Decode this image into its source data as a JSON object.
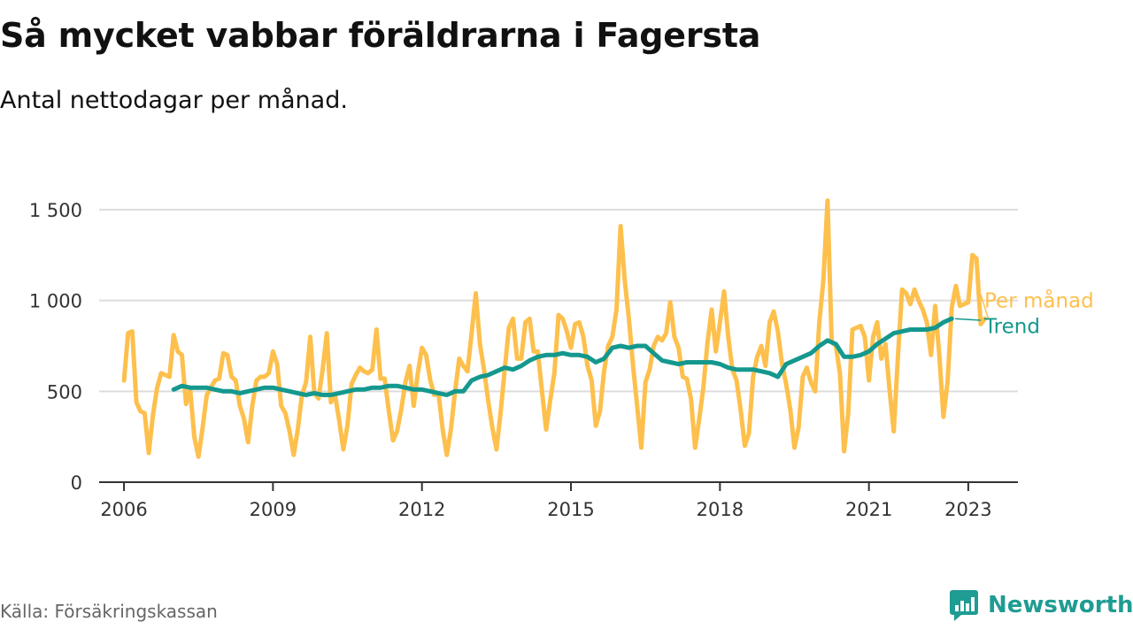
{
  "title": "Så mycket vabbar föräldrarna i Fagersta",
  "subtitle": "Antal nettodagar per månad.",
  "source": "Källa: Försäkringskassan",
  "brand": {
    "name": "Newsworthy",
    "icon": "newsworthy-logo-icon"
  },
  "colors": {
    "monthly": "#fdc04d",
    "trend": "#14988e",
    "grid": "#dddddd",
    "axis": "#333333"
  },
  "chart_data": {
    "type": "line",
    "title": "Så mycket vabbar föräldrarna i Fagersta",
    "xlabel": "",
    "ylabel": "",
    "xlim": [
      "2005-07",
      "2024-01"
    ],
    "ylim": [
      0,
      1500
    ],
    "x_ticks": [
      {
        "date": "2006-01",
        "label": "2006"
      },
      {
        "date": "2009-01",
        "label": "2009"
      },
      {
        "date": "2012-01",
        "label": "2012"
      },
      {
        "date": "2015-01",
        "label": "2015"
      },
      {
        "date": "2018-01",
        "label": "2018"
      },
      {
        "date": "2021-01",
        "label": "2021"
      },
      {
        "date": "2023-01",
        "label": "2023"
      }
    ],
    "y_ticks": [
      {
        "value": 0,
        "label": "0"
      },
      {
        "value": 500,
        "label": "500"
      },
      {
        "value": 1000,
        "label": "1 000"
      },
      {
        "value": 1500,
        "label": "1 500"
      }
    ],
    "grid": true,
    "legend": "inline labels at line ends (right)",
    "series": [
      {
        "name": "Per månad",
        "color": "#fdc04d",
        "start": "2006-01",
        "values": [
          560,
          820,
          830,
          440,
          390,
          380,
          160,
          370,
          520,
          600,
          590,
          580,
          810,
          720,
          700,
          430,
          510,
          250,
          140,
          300,
          480,
          520,
          560,
          570,
          710,
          700,
          580,
          560,
          420,
          350,
          220,
          420,
          560,
          580,
          580,
          600,
          720,
          650,
          420,
          380,
          280,
          150,
          290,
          480,
          550,
          800,
          490,
          460,
          620,
          820,
          440,
          480,
          340,
          180,
          310,
          540,
          590,
          630,
          610,
          600,
          620,
          840,
          570,
          570,
          390,
          230,
          280,
          400,
          550,
          640,
          420,
          600,
          740,
          700,
          560,
          480,
          490,
          290,
          150,
          290,
          500,
          680,
          640,
          610,
          820,
          1040,
          760,
          620,
          450,
          300,
          180,
          380,
          620,
          850,
          900,
          680,
          680,
          880,
          900,
          720,
          720,
          500,
          290,
          450,
          600,
          920,
          900,
          830,
          740,
          870,
          880,
          800,
          640,
          560,
          310,
          390,
          610,
          750,
          800,
          950,
          1410,
          1110,
          900,
          640,
          420,
          190,
          550,
          620,
          750,
          800,
          780,
          820,
          990,
          800,
          740,
          580,
          570,
          460,
          190,
          350,
          520,
          770,
          950,
          720,
          880,
          1050,
          800,
          620,
          560,
          400,
          200,
          270,
          580,
          690,
          750,
          640,
          880,
          940,
          830,
          650,
          540,
          400,
          190,
          300,
          580,
          630,
          550,
          500,
          880,
          1110,
          1550,
          770,
          750,
          600,
          170,
          380,
          840,
          850,
          860,
          800,
          560,
          800,
          880,
          680,
          760,
          500,
          280,
          690,
          1060,
          1040,
          980,
          1060,
          1000,
          950,
          880,
          700,
          970,
          700,
          360,
          550,
          960,
          1080,
          970,
          980,
          990,
          1250,
          1230,
          870,
          900
        ]
      },
      {
        "name": "Trend",
        "color": "#14988e",
        "start": "2007-01",
        "step": 2,
        "values": [
          510,
          530,
          520,
          520,
          520,
          510,
          500,
          500,
          490,
          500,
          510,
          520,
          520,
          510,
          500,
          490,
          480,
          490,
          480,
          480,
          490,
          500,
          510,
          510,
          520,
          520,
          530,
          530,
          520,
          510,
          510,
          500,
          490,
          480,
          500,
          500,
          560,
          580,
          590,
          610,
          630,
          620,
          640,
          670,
          690,
          700,
          700,
          710,
          700,
          700,
          690,
          660,
          680,
          740,
          750,
          740,
          750,
          750,
          710,
          670,
          660,
          650,
          660,
          660,
          660,
          660,
          650,
          630,
          620,
          620,
          620,
          610,
          600,
          580,
          650,
          670,
          690,
          710,
          750,
          780,
          760,
          690,
          690,
          700,
          720,
          760,
          790,
          820,
          830,
          840,
          840,
          840,
          850,
          880,
          900
        ]
      }
    ]
  }
}
